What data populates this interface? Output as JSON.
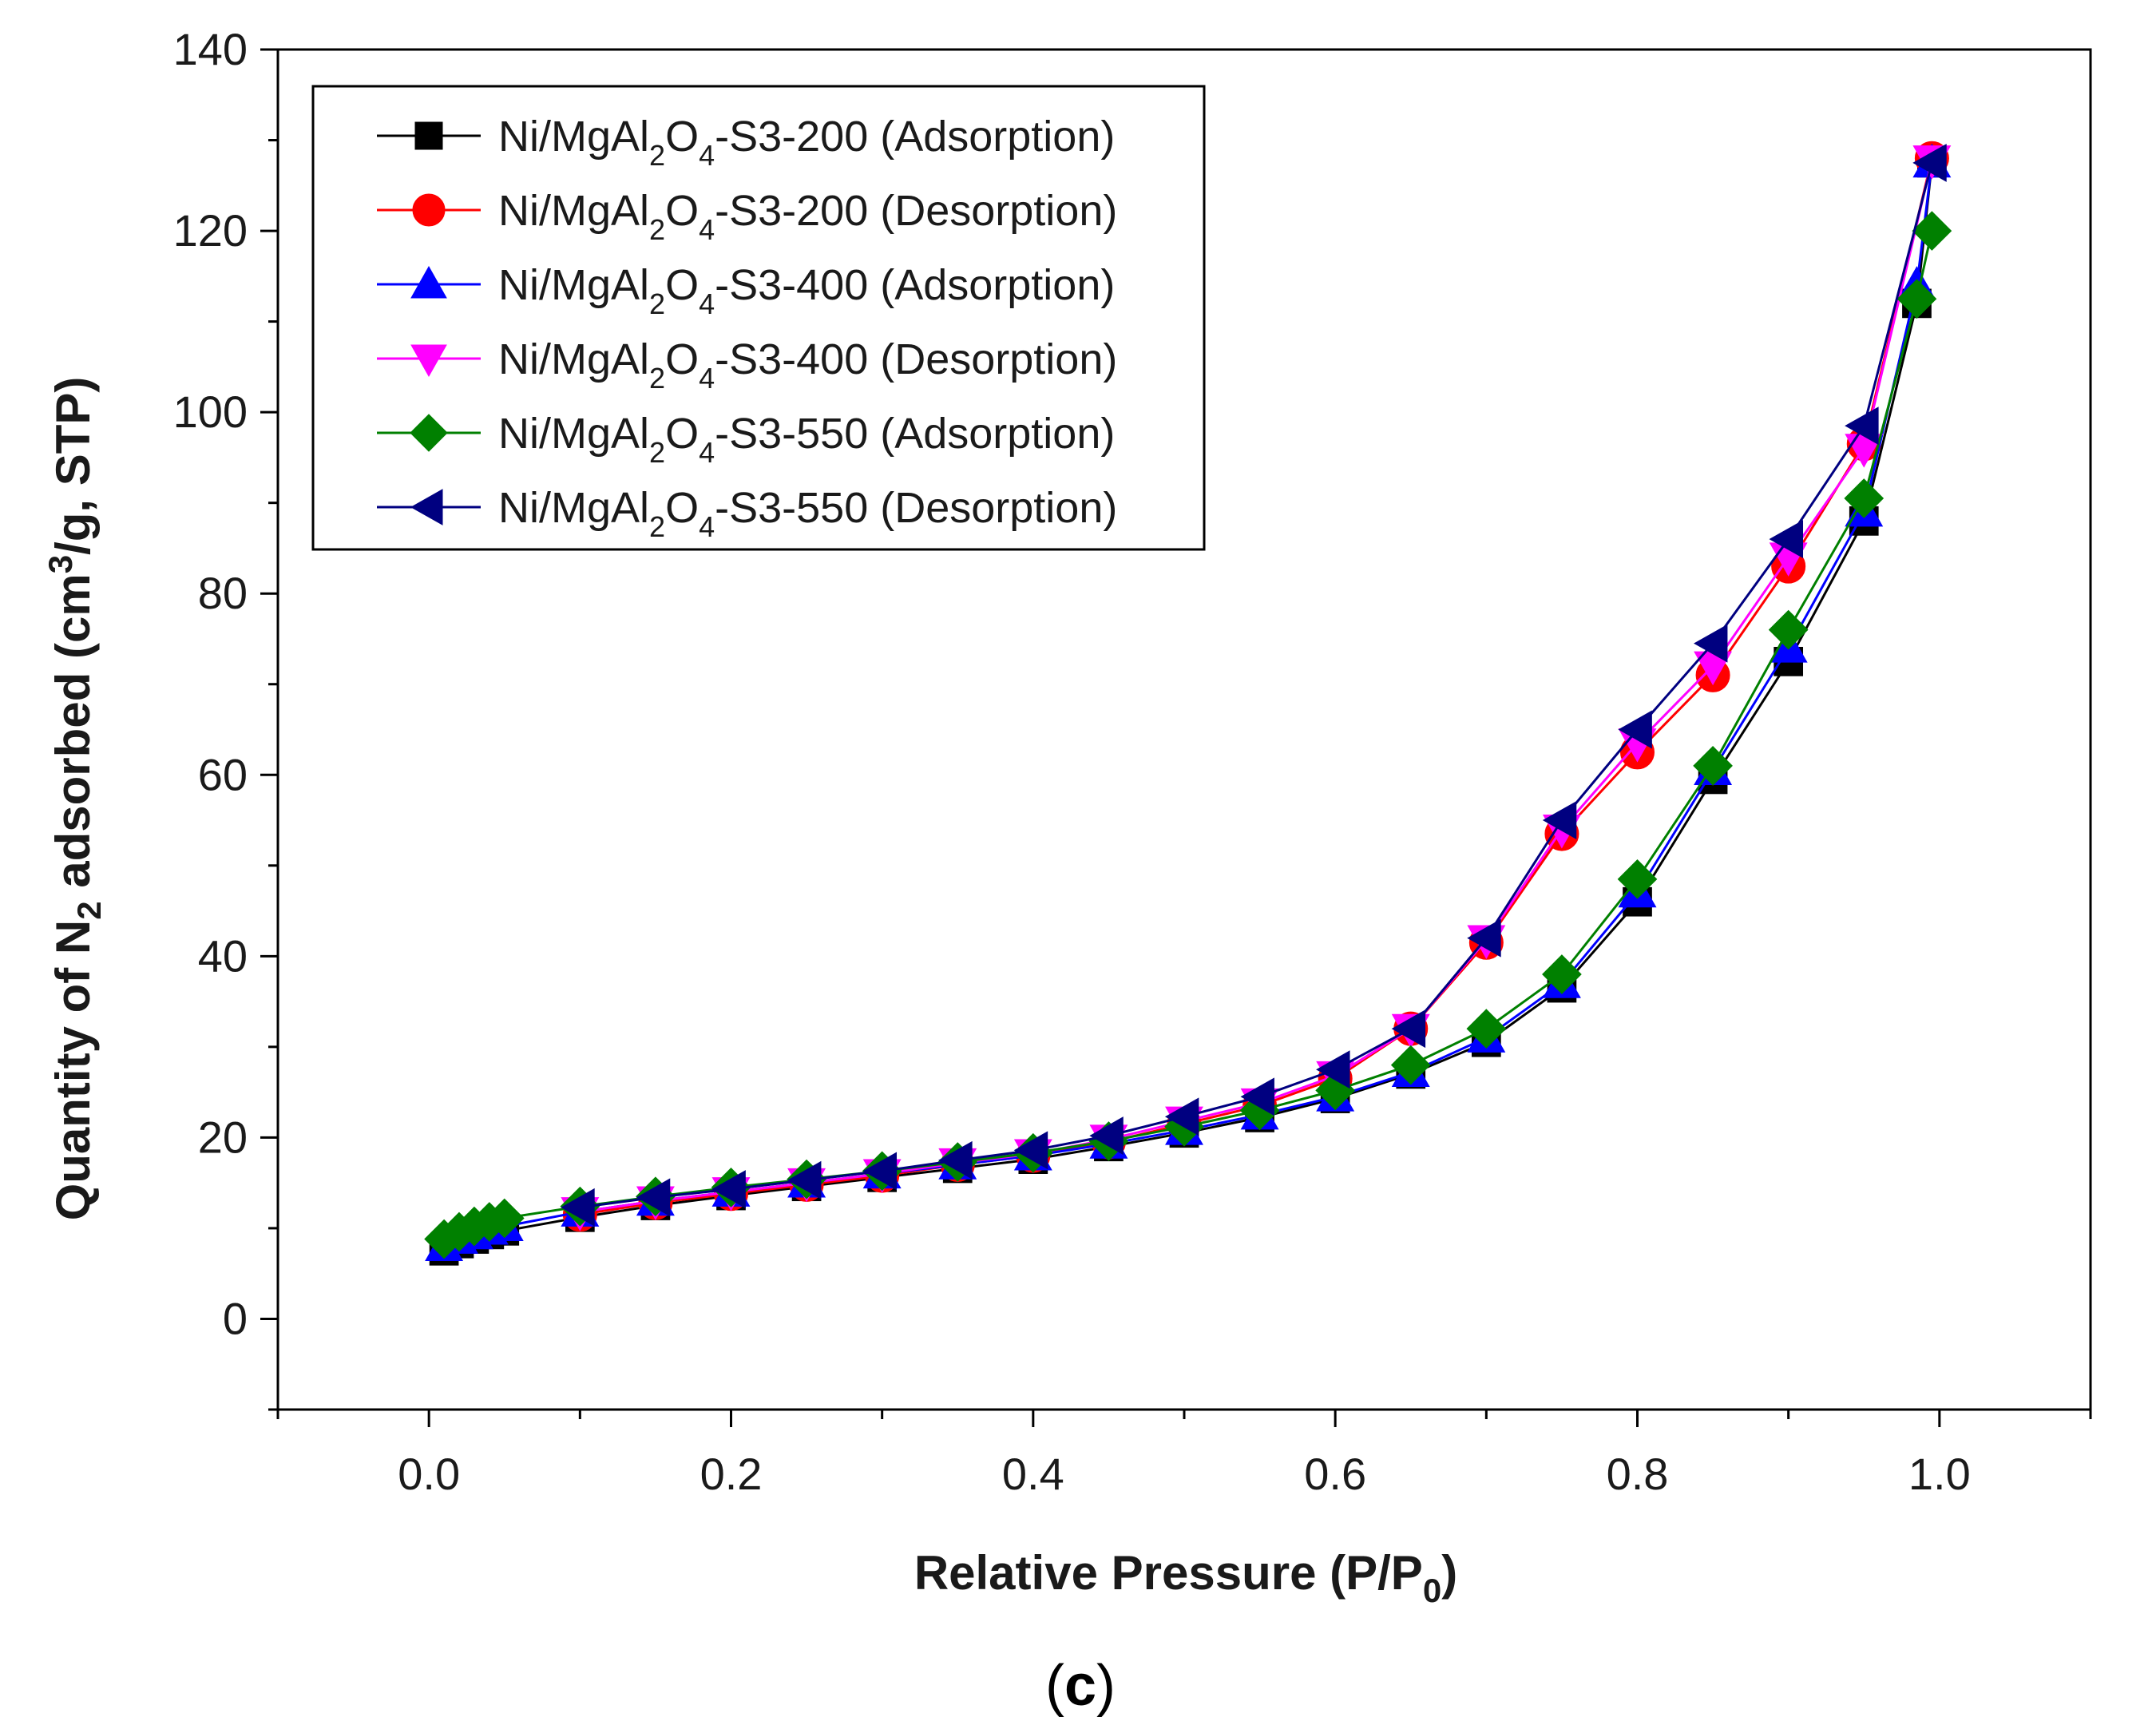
{
  "chart_data": {
    "type": "line",
    "xlabel": "Relative Pressure (P/P0)",
    "xlabel_main": "Relative Pressure (P/P",
    "xlabel_sub": "0",
    "xlabel_end": ")",
    "ylabel": "Quantity of N2 adsorbed (cm3/g, STP)",
    "ylabel_a": "Quantity of N",
    "ylabel_sub": "2",
    "ylabel_b": " adsorbed (cm",
    "ylabel_sup": "3",
    "ylabel_c": "/g, STP)",
    "xlim": [
      -0.1,
      1.1
    ],
    "ylim": [
      -10,
      140
    ],
    "x_ticks": [
      "0.0",
      "0.2",
      "0.4",
      "0.6",
      "0.8",
      "1.0"
    ],
    "y_ticks": [
      "0",
      "20",
      "40",
      "60",
      "80",
      "100",
      "120",
      "140"
    ],
    "legend_position": "top-left",
    "caption": "(c)",
    "caption_open": "(",
    "caption_letter": "c",
    "caption_close": ")",
    "series": [
      {
        "name": "Ni/MgAl2O4-S3-200 (Adsorption)",
        "label_parts": [
          "Ni/MgAl",
          "2",
          "O",
          "4",
          "-S3-200 (Adsorption)"
        ],
        "color": "#000000",
        "marker": "square",
        "x": [
          0.01,
          0.02,
          0.03,
          0.04,
          0.05,
          0.1,
          0.15,
          0.2,
          0.25,
          0.3,
          0.35,
          0.4,
          0.45,
          0.5,
          0.55,
          0.6,
          0.65,
          0.7,
          0.75,
          0.8,
          0.85,
          0.9,
          0.95,
          0.985,
          0.995
        ],
        "y": [
          7.5,
          8.3,
          8.8,
          9.3,
          9.7,
          11.2,
          12.5,
          13.6,
          14.6,
          15.6,
          16.6,
          17.6,
          19.0,
          20.5,
          22.2,
          24.3,
          27.0,
          30.5,
          36.5,
          46.0,
          59.5,
          72.5,
          88.0,
          112.0,
          127.5
        ]
      },
      {
        "name": "Ni/MgAl2O4-S3-200 (Desorption)",
        "label_parts": [
          "Ni/MgAl",
          "2",
          "O",
          "4",
          "-S3-200 (Desorption)"
        ],
        "color": "#ff0000",
        "marker": "circle",
        "x": [
          0.995,
          0.95,
          0.9,
          0.85,
          0.8,
          0.75,
          0.7,
          0.65,
          0.6,
          0.55,
          0.5,
          0.45,
          0.4,
          0.35,
          0.3,
          0.25,
          0.2,
          0.15,
          0.1
        ],
        "y": [
          128.0,
          96.5,
          83.0,
          71.0,
          62.5,
          53.5,
          41.5,
          32.0,
          26.5,
          23.5,
          21.5,
          19.5,
          18.0,
          17.0,
          15.8,
          14.8,
          13.8,
          12.8,
          11.5
        ]
      },
      {
        "name": "Ni/MgAl2O4-S3-400 (Adsorption)",
        "label_parts": [
          "Ni/MgAl",
          "2",
          "O",
          "4",
          "-S3-400 (Adsorption)"
        ],
        "color": "#0000ff",
        "marker": "triangle-up",
        "x": [
          0.01,
          0.02,
          0.03,
          0.04,
          0.05,
          0.1,
          0.15,
          0.2,
          0.25,
          0.3,
          0.35,
          0.4,
          0.45,
          0.5,
          0.55,
          0.6,
          0.65,
          0.7,
          0.75,
          0.8,
          0.85,
          0.9,
          0.95,
          0.985,
          0.995
        ],
        "y": [
          8.0,
          8.8,
          9.3,
          9.8,
          10.2,
          11.8,
          13.0,
          14.0,
          15.0,
          16.0,
          17.0,
          18.0,
          19.3,
          20.8,
          22.5,
          24.5,
          27.2,
          31.0,
          37.0,
          47.0,
          60.5,
          74.0,
          89.0,
          114.0,
          127.5
        ]
      },
      {
        "name": "Ni/MgAl2O4-S3-400 (Desorption)",
        "label_parts": [
          "Ni/MgAl",
          "2",
          "O",
          "4",
          "-S3-400 (Desorption)"
        ],
        "color": "#ff00ff",
        "marker": "triangle-down",
        "x": [
          0.995,
          0.95,
          0.9,
          0.85,
          0.8,
          0.75,
          0.7,
          0.65,
          0.6,
          0.55,
          0.5,
          0.45,
          0.4,
          0.35,
          0.3,
          0.25,
          0.2,
          0.15,
          0.1
        ],
        "y": [
          127.8,
          96.0,
          84.0,
          72.0,
          63.5,
          54.0,
          41.8,
          32.0,
          26.8,
          23.8,
          21.8,
          19.8,
          18.2,
          17.2,
          16.0,
          15.0,
          14.0,
          13.0,
          11.8
        ]
      },
      {
        "name": "Ni/MgAl2O4-S3-550 (Adsorption)",
        "label_parts": [
          "Ni/MgAl",
          "2",
          "O",
          "4",
          "-S3-550 (Adsorption)"
        ],
        "color": "#008000",
        "marker": "diamond",
        "x": [
          0.01,
          0.02,
          0.03,
          0.04,
          0.05,
          0.1,
          0.15,
          0.2,
          0.25,
          0.3,
          0.35,
          0.4,
          0.45,
          0.5,
          0.55,
          0.6,
          0.65,
          0.7,
          0.75,
          0.8,
          0.85,
          0.9,
          0.95,
          0.985,
          0.995
        ],
        "y": [
          8.8,
          9.6,
          10.2,
          10.7,
          11.1,
          12.4,
          13.5,
          14.5,
          15.4,
          16.3,
          17.3,
          18.3,
          19.6,
          21.2,
          23.0,
          25.2,
          28.0,
          32.0,
          38.0,
          48.5,
          61.0,
          76.0,
          90.5,
          112.5,
          120.0
        ]
      },
      {
        "name": "Ni/MgAl2O4-S3-550 (Desorption)",
        "label_parts": [
          "Ni/MgAl",
          "2",
          "O",
          "4",
          "-S3-550 (Desorption)"
        ],
        "color": "#000080",
        "marker": "triangle-left",
        "x": [
          0.995,
          0.95,
          0.9,
          0.85,
          0.8,
          0.75,
          0.7,
          0.65,
          0.6,
          0.55,
          0.5,
          0.45,
          0.4,
          0.35,
          0.3,
          0.25,
          0.2,
          0.15,
          0.1
        ],
        "y": [
          127.5,
          98.5,
          86.0,
          74.5,
          65.0,
          55.0,
          42.0,
          32.0,
          27.5,
          24.5,
          22.3,
          20.2,
          18.6,
          17.5,
          16.3,
          15.3,
          14.3,
          13.4,
          12.3
        ]
      }
    ]
  }
}
